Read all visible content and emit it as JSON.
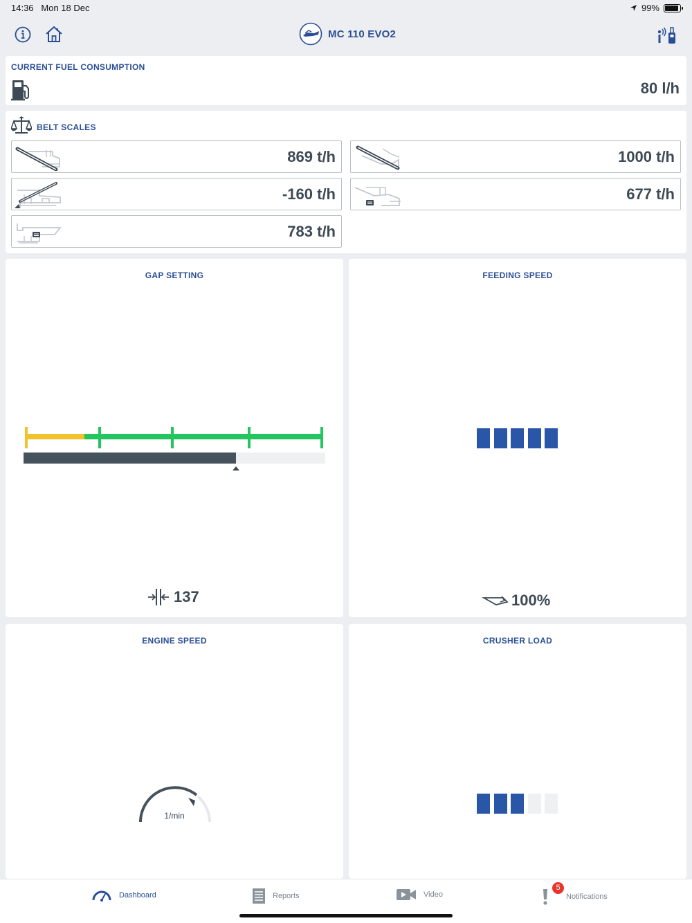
{
  "status": {
    "time": "14:36",
    "date": "Mon 18 Dec",
    "battery": "99%"
  },
  "header": {
    "title": "MC 110 EVO2",
    "info_icon": "info-icon",
    "home_icon": "home-icon",
    "remote_icon": "remote-control-icon"
  },
  "fuel": {
    "title": "CURRENT FUEL CONSUMPTION",
    "value": "80 l/h",
    "icon": "fuel-pump-icon"
  },
  "belt_scales": {
    "title": "BELT SCALES",
    "items": [
      {
        "value": "869 t/h",
        "icon": "main-conveyor-icon"
      },
      {
        "value": "1000 t/h",
        "icon": "side-conveyor-icon"
      },
      {
        "value": "-160 t/h",
        "icon": "return-conveyor-icon"
      },
      {
        "value": "677 t/h",
        "icon": "fines-conveyor-icon"
      },
      {
        "value": "783 t/h",
        "icon": "feed-conveyor-icon"
      }
    ]
  },
  "gap_setting": {
    "title": "GAP SETTING",
    "value": "137",
    "bar_fraction": 0.705,
    "yellow_fraction": 0.2
  },
  "feeding_speed": {
    "title": "FEEDING SPEED",
    "value": "100%",
    "segments_total": 5,
    "segments_active": 5
  },
  "engine_speed": {
    "title": "ENGINE SPEED",
    "unit": "1/min"
  },
  "crusher_load": {
    "title": "CRUSHER LOAD",
    "segments_total": 5,
    "segments_active": 3
  },
  "tabs": [
    {
      "label": "Dashboard",
      "icon": "speedometer-icon",
      "active": true
    },
    {
      "label": "Reports",
      "icon": "list-icon",
      "active": false
    },
    {
      "label": "Video",
      "icon": "video-camera-icon",
      "active": false
    },
    {
      "label": "Notifications",
      "icon": "exclamation-icon",
      "active": false,
      "badge": "5"
    }
  ],
  "colors": {
    "accent": "#2a4e96",
    "green": "#22c55e",
    "yellow": "#f2c12e",
    "dark": "#3d4a55",
    "segment_on": "#2a56a8",
    "segment_off": "#eef0f2"
  }
}
